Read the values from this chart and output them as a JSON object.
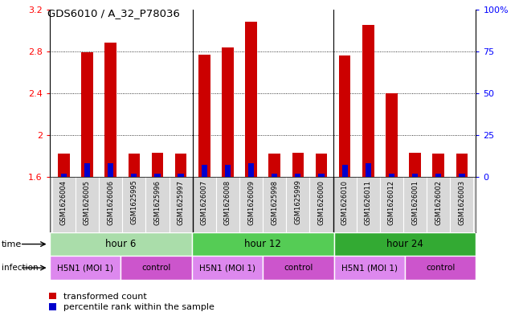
{
  "title": "GDS6010 / A_32_P78036",
  "samples": [
    "GSM1626004",
    "GSM1626005",
    "GSM1626006",
    "GSM1625995",
    "GSM1625996",
    "GSM1625997",
    "GSM1626007",
    "GSM1626008",
    "GSM1626009",
    "GSM1625998",
    "GSM1625999",
    "GSM1626000",
    "GSM1626010",
    "GSM1626011",
    "GSM1626012",
    "GSM1626001",
    "GSM1626002",
    "GSM1626003"
  ],
  "red_values": [
    1.82,
    2.79,
    2.88,
    1.82,
    1.83,
    1.82,
    2.77,
    2.84,
    3.08,
    1.82,
    1.83,
    1.82,
    2.76,
    3.05,
    2.4,
    1.83,
    1.82,
    1.82
  ],
  "blue_pct": [
    2,
    8,
    8,
    2,
    2,
    2,
    7,
    7,
    8,
    2,
    2,
    2,
    7,
    8,
    2,
    2,
    2,
    2
  ],
  "ylim": [
    1.6,
    3.2
  ],
  "yticks": [
    1.6,
    2.0,
    2.4,
    2.8,
    3.2
  ],
  "ytick_labels": [
    "1.6",
    "2",
    "2.4",
    "2.8",
    "3.2"
  ],
  "right_yticks": [
    0,
    25,
    50,
    75,
    100
  ],
  "right_ytick_labels": [
    "0",
    "25",
    "50",
    "75",
    "100%"
  ],
  "bar_color": "#cc0000",
  "blue_color": "#0000cc",
  "time_groups": [
    {
      "label": "hour 6",
      "start": 0,
      "end": 6,
      "color": "#aaddaa"
    },
    {
      "label": "hour 12",
      "start": 6,
      "end": 12,
      "color": "#55cc55"
    },
    {
      "label": "hour 24",
      "start": 12,
      "end": 18,
      "color": "#33aa33"
    }
  ],
  "infection_groups": [
    {
      "label": "H5N1 (MOI 1)",
      "start": 0,
      "end": 3,
      "color": "#dd88ee"
    },
    {
      "label": "control",
      "start": 3,
      "end": 6,
      "color": "#cc55cc"
    },
    {
      "label": "H5N1 (MOI 1)",
      "start": 6,
      "end": 9,
      "color": "#dd88ee"
    },
    {
      "label": "control",
      "start": 9,
      "end": 12,
      "color": "#cc55cc"
    },
    {
      "label": "H5N1 (MOI 1)",
      "start": 12,
      "end": 15,
      "color": "#dd88ee"
    },
    {
      "label": "control",
      "start": 15,
      "end": 18,
      "color": "#cc55cc"
    }
  ],
  "sample_bg_color": "#d8d8d8",
  "legend_red": "transformed count",
  "legend_blue": "percentile rank within the sample",
  "base": 1.6,
  "bar_width": 0.5,
  "blue_bar_width": 0.25
}
